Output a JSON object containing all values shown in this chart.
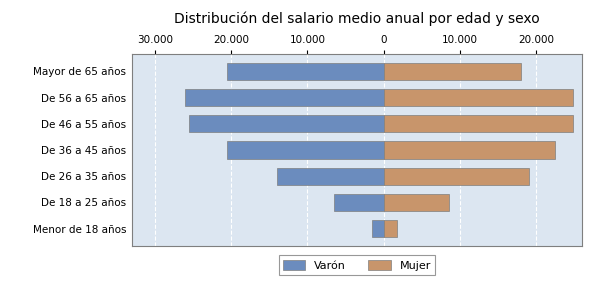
{
  "title": "Distribución del salario medio anual por edad y sexo",
  "categories": [
    "Menor de 18 años",
    "De 18 a 25 años",
    "De 26 a 35 años",
    "De 36 a 45 años",
    "De 46 a 55 años",
    "De 56 a 65 años",
    "Mayor de 65 años"
  ],
  "varon": [
    -1500,
    -6500,
    -14000,
    -20500,
    -25500,
    -26000,
    -20500
  ],
  "mujer": [
    1800,
    8500,
    19000,
    22500,
    24800,
    24800,
    18000
  ],
  "varon_color": "#6b8cbe",
  "mujer_color": "#c8956b",
  "bg_color": "#ffffff",
  "plot_bg_color": "#dce6f1",
  "grid_color": "#ffffff",
  "xlim": [
    -33000,
    26000
  ],
  "xticks": [
    -30000,
    -20000,
    -10000,
    0,
    10000,
    20000
  ],
  "xtick_labels": [
    "30.000",
    "20.000",
    "10.000",
    "0",
    "10.000",
    "20.000"
  ],
  "title_fontsize": 10,
  "tick_fontsize": 7.5,
  "legend_fontsize": 8,
  "legend_labels": [
    "Varón",
    "Mujer"
  ],
  "bar_edgecolor": "#7f7f7f",
  "spine_color": "#7f7f7f"
}
